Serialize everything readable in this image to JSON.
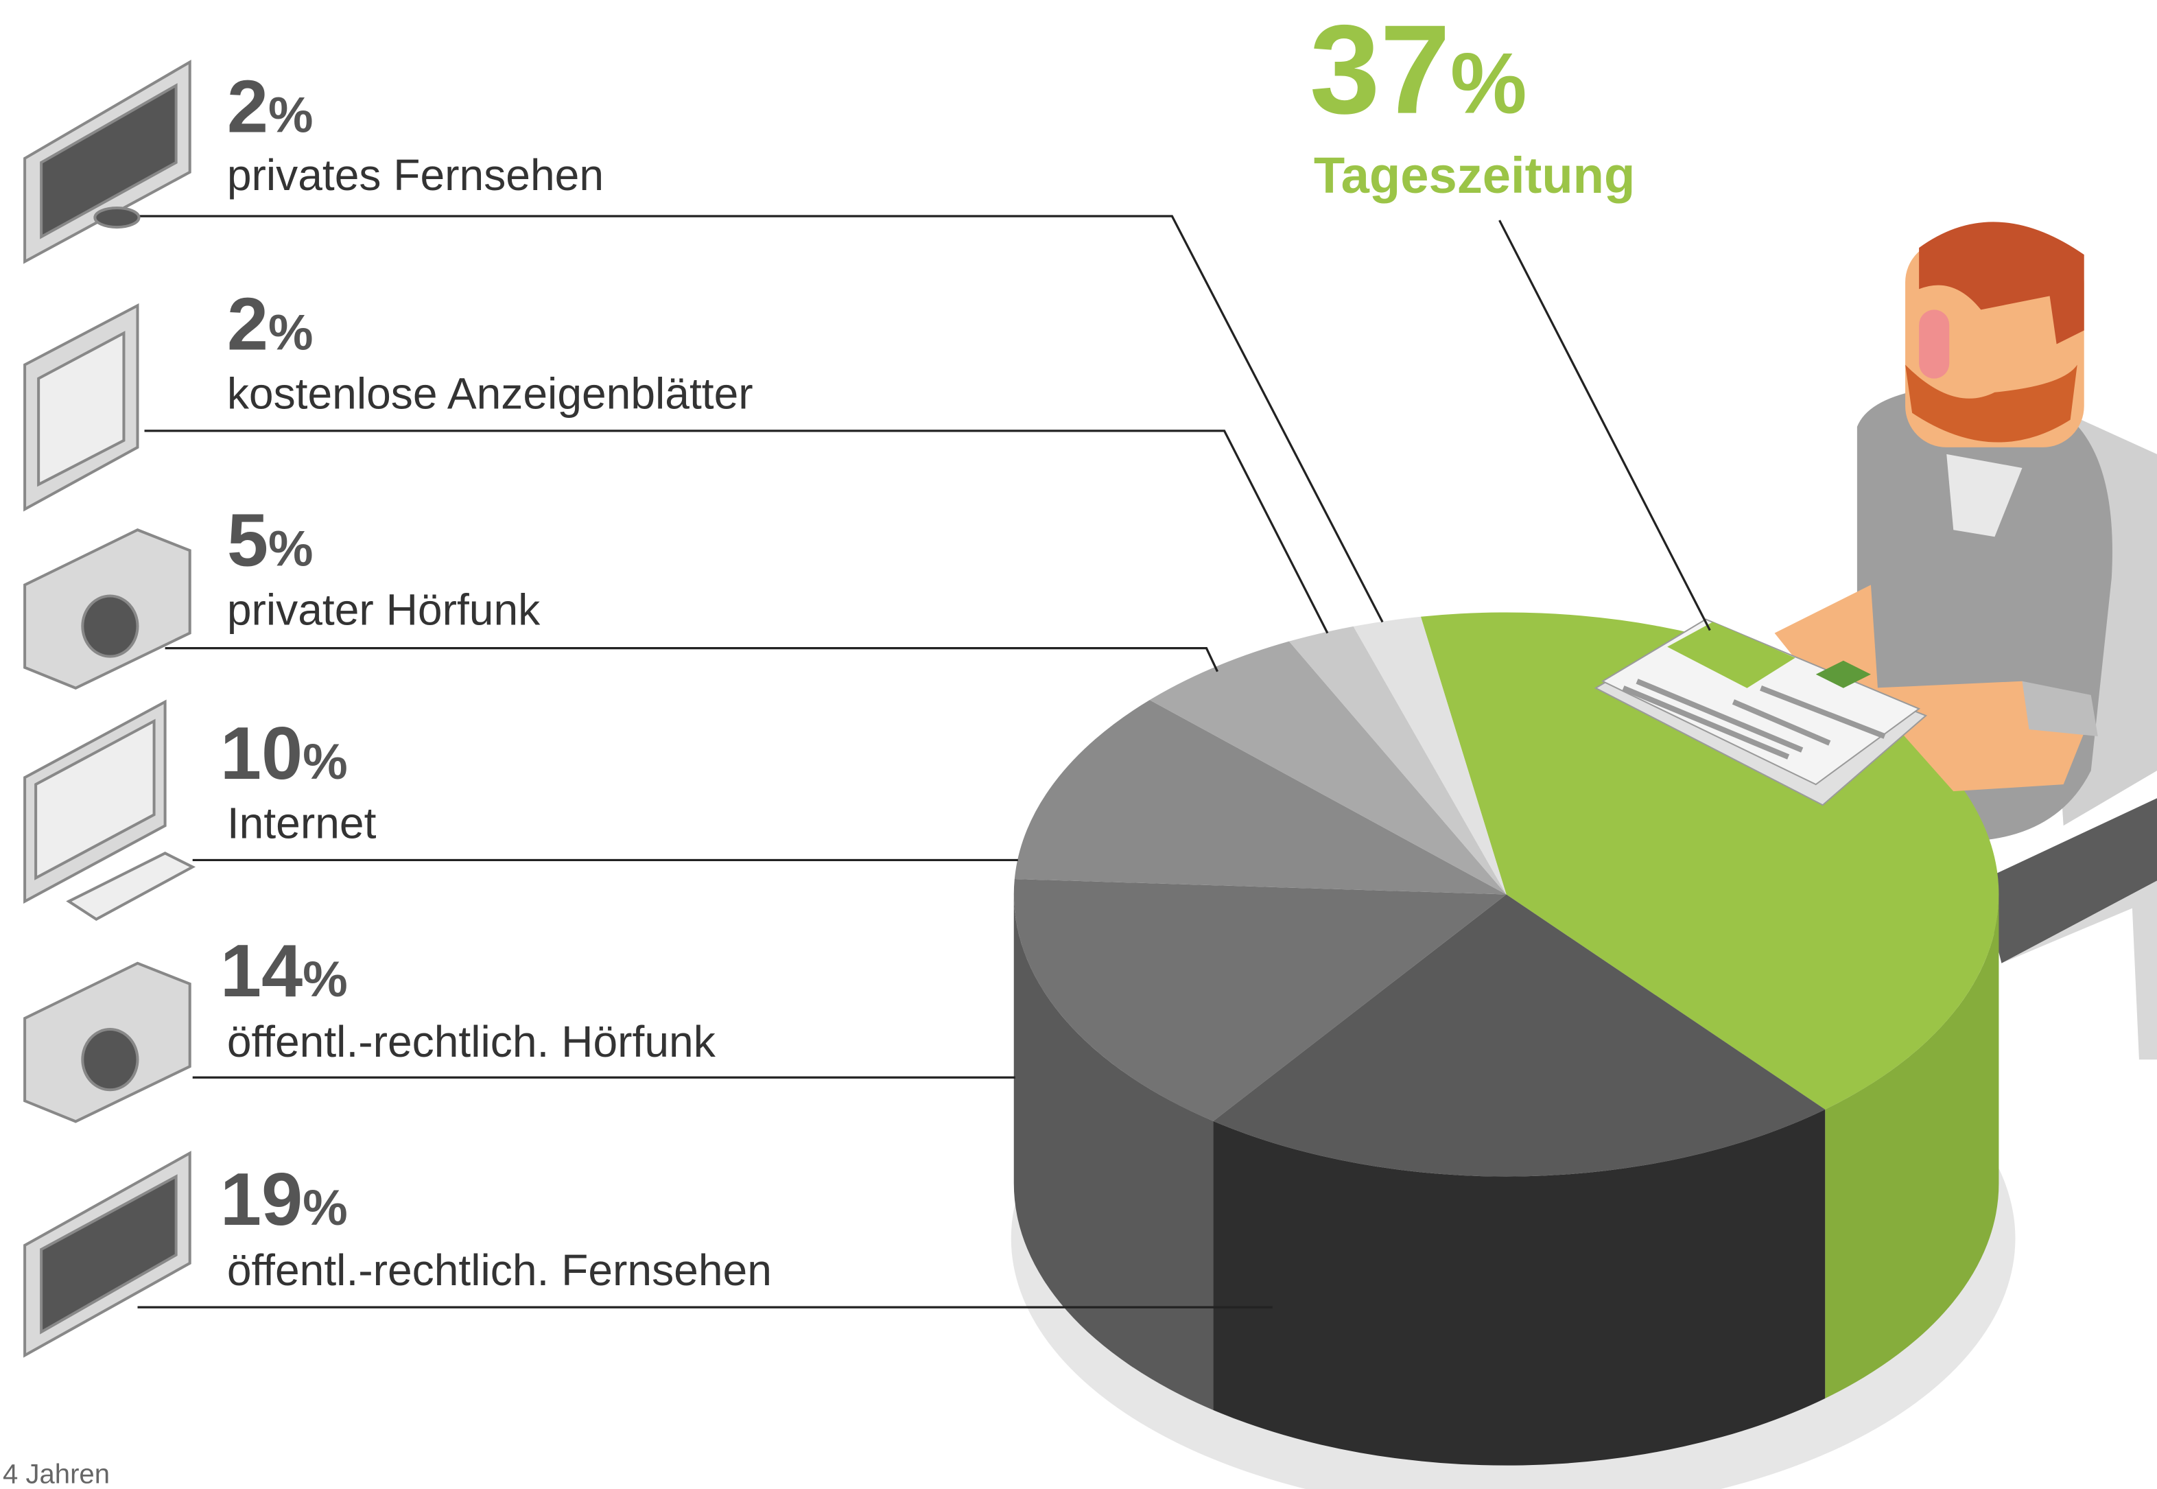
{
  "chart_data": {
    "type": "pie",
    "categories": [
      "Tageszeitung",
      "privates Fernsehen",
      "kostenlose Anzeigenblätter",
      "privater Hörfunk",
      "Internet",
      "öffentl.-rechtlich. Hörfunk",
      "öffentl.-rechtlich. Fernsehen"
    ],
    "values": [
      37,
      2,
      2,
      5,
      10,
      14,
      19
    ],
    "value_labels": [
      "37%",
      "2%",
      "2%",
      "5%",
      "10%",
      "14%",
      "19%"
    ],
    "colors": [
      "#9bc447",
      "#e2e2e2",
      "#c9c9c9",
      "#a9a9a9",
      "#8a8a8a",
      "#737373",
      "#5a5a5a"
    ],
    "side_colors": [
      "#86ad3c",
      "#bdbdbd",
      "#a5a5a5",
      "#8a8a8a",
      "#6e6e6e",
      "#5a5a5a",
      "#2e2e2e"
    ],
    "footnote": "4 Jahren"
  }
}
